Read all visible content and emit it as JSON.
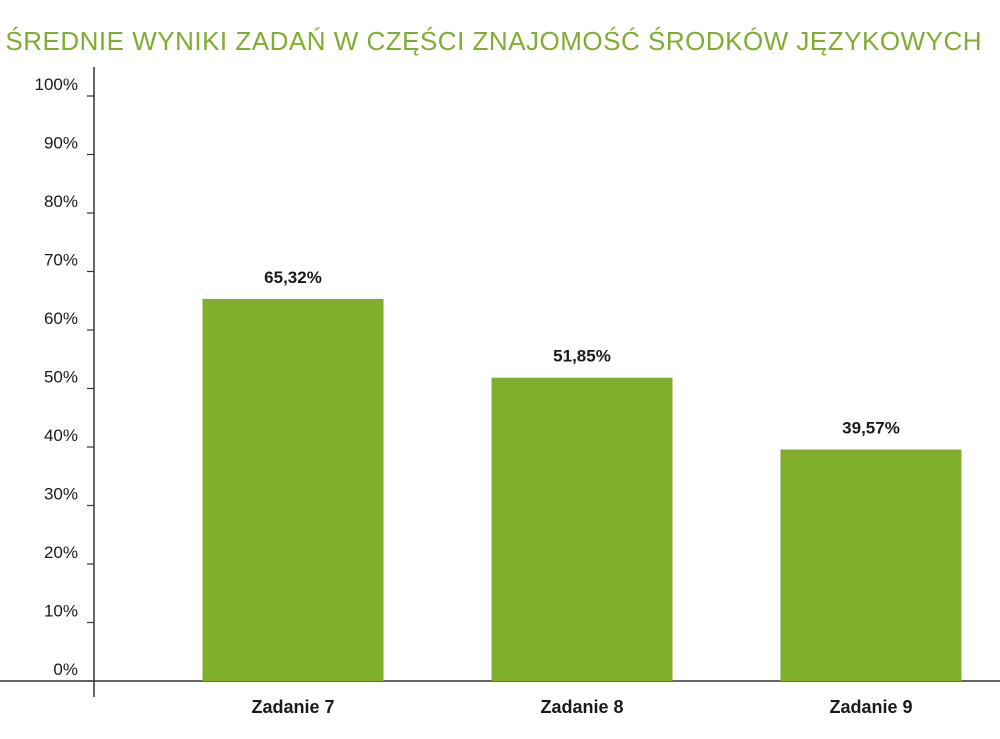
{
  "chart_data": {
    "type": "bar",
    "title": "ŚREDNIE WYNIKI ZADAŃ W CZĘŚCI ZNAJOMOŚĆ ŚRODKÓW JĘZYKOWYCH",
    "categories": [
      "Zadanie 7",
      "Zadanie 8",
      "Zadanie 9"
    ],
    "values": [
      65.32,
      51.85,
      39.57
    ],
    "value_labels": [
      "65,32%",
      "51,85%",
      "39,57%"
    ],
    "yticks": [
      "0%",
      "10%",
      "20%",
      "30%",
      "40%",
      "50%",
      "60%",
      "70%",
      "80%",
      "90%",
      "100%"
    ],
    "ylim": [
      0,
      100
    ],
    "xlabel": "",
    "ylabel": "",
    "grid": false,
    "colors": {
      "bar": "#80ae2d",
      "title": "#7fad2f",
      "axis": "#333333"
    }
  }
}
